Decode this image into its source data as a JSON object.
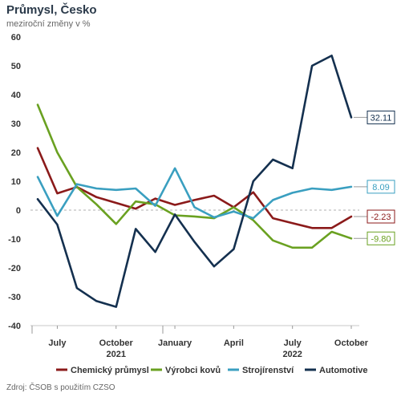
{
  "title": "Průmysl, Česko",
  "subtitle": "meziroční změny v %",
  "source": "Zdroj: ČSOB s použitím CZSO",
  "chart_data": {
    "type": "line",
    "x": [
      "2021-06",
      "2021-07",
      "2021-08",
      "2021-09",
      "2021-10",
      "2021-11",
      "2021-12",
      "2022-01",
      "2022-02",
      "2022-03",
      "2022-04",
      "2022-05",
      "2022-06",
      "2022-07",
      "2022-08",
      "2022-09",
      "2022-10"
    ],
    "x_tick_labels": [
      {
        "month": "2021-07",
        "label": "July"
      },
      {
        "month": "2021-10",
        "label": "October"
      },
      {
        "month": "2022-01",
        "label": "January"
      },
      {
        "month": "2022-04",
        "label": "April"
      },
      {
        "month": "2022-07",
        "label": "July"
      },
      {
        "month": "2022-10",
        "label": "October"
      }
    ],
    "year_labels": [
      {
        "month": "2021-10",
        "label": "2021"
      },
      {
        "month": "2022-07",
        "label": "2022"
      }
    ],
    "ylim": [
      -40,
      60
    ],
    "y_ticks": [
      -40,
      -30,
      -20,
      -10,
      0,
      10,
      20,
      30,
      40,
      50,
      60
    ],
    "legend_position": "bottom",
    "zero_line": "dashed",
    "series": [
      {
        "name": "Chemický průmysl",
        "color": "#8b1a1a",
        "values": [
          21.5,
          5.8,
          8.0,
          4.5,
          2.5,
          0.5,
          4.0,
          1.8,
          3.5,
          5.0,
          1.0,
          6.2,
          -2.8,
          -4.5,
          -6.2,
          -6.2,
          -2.23
        ],
        "end_label": "-2.23"
      },
      {
        "name": "Výrobci kovů",
        "color": "#6aa121",
        "values": [
          36.5,
          20.0,
          8.0,
          2.0,
          -4.8,
          3.0,
          2.0,
          -1.8,
          -2.2,
          -2.8,
          1.0,
          -3.5,
          -10.5,
          -13.0,
          -13.0,
          -7.5,
          -9.8
        ],
        "end_label": "-9.80"
      },
      {
        "name": "Strojírenství",
        "color": "#3a9fc0",
        "values": [
          11.5,
          -2.0,
          9.0,
          7.5,
          7.0,
          7.5,
          1.5,
          14.5,
          1.0,
          -2.5,
          -0.5,
          -2.8,
          3.5,
          6.0,
          7.5,
          7.0,
          8.09
        ],
        "end_label": "8.09"
      },
      {
        "name": "Automotive",
        "color": "#14304f",
        "values": [
          3.8,
          -5.0,
          -27.0,
          -31.5,
          -33.5,
          -6.5,
          -14.5,
          -1.5,
          -11.0,
          -19.5,
          -13.5,
          10.0,
          17.5,
          14.5,
          50.0,
          53.5,
          32.11
        ],
        "end_label": "32.11"
      }
    ]
  }
}
